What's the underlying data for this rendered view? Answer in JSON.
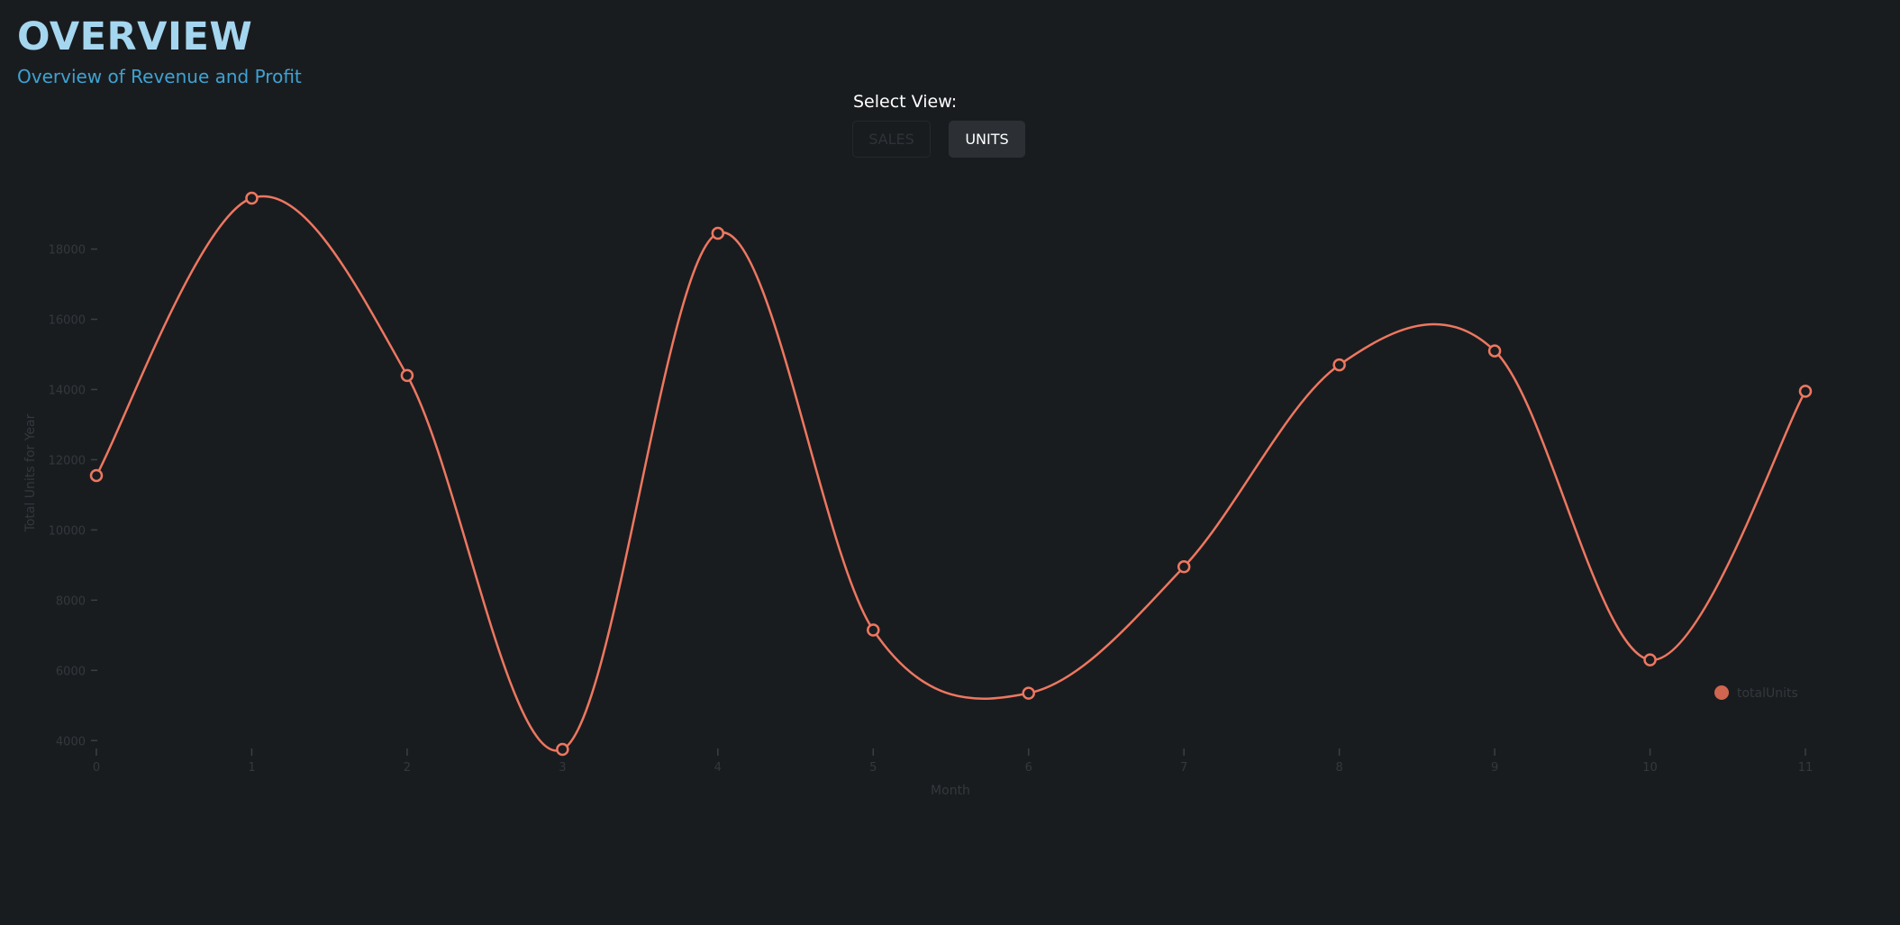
{
  "header": {
    "title": "OVERVIEW",
    "subtitle": "Overview of Revenue and Profit"
  },
  "view_selector": {
    "label": "Select View:",
    "options": [
      "SALES",
      "UNITS"
    ],
    "selected": "UNITS"
  },
  "colors": {
    "background": "#191c1f",
    "title": "#a5d6ef",
    "subtitle": "#3fa2d2",
    "series_line": "#ee7760",
    "legend_dot": "#d06550",
    "muted_text": "#33383d"
  },
  "chart_data": {
    "type": "line",
    "curve": "smooth",
    "x": [
      0,
      1,
      2,
      3,
      4,
      5,
      6,
      7,
      8,
      9,
      10,
      11
    ],
    "series": [
      {
        "name": "totalUnits",
        "values": [
          11550,
          19450,
          14400,
          3750,
          18450,
          7150,
          5350,
          8950,
          14700,
          15100,
          6300,
          13950
        ]
      }
    ],
    "xlabel": "Month",
    "ylabel": "Total Units for Year",
    "x_ticks": [
      "0",
      "1",
      "2",
      "3",
      "4",
      "5",
      "6",
      "7",
      "8",
      "9",
      "10",
      "11"
    ],
    "y_ticks": [
      "4000",
      "6000",
      "8000",
      "10000",
      "12000",
      "14000",
      "16000",
      "18000"
    ],
    "ylim": [
      3750,
      19450
    ],
    "grid": false,
    "legend_position": "bottom-right",
    "marker": "open-circle"
  }
}
